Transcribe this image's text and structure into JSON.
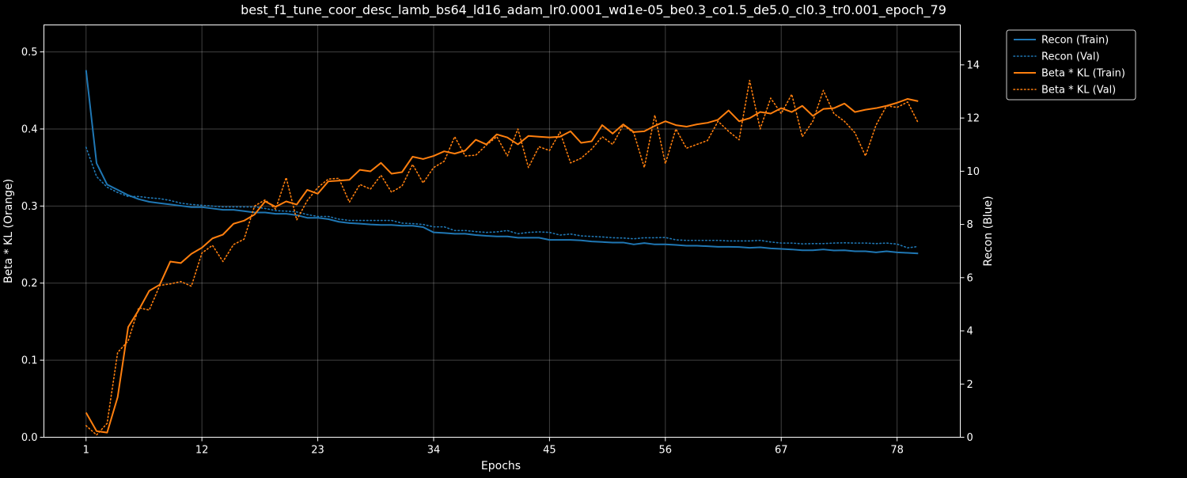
{
  "chart_data": {
    "type": "line",
    "title": "best_f1_tune_coor_desc_lamb_bs64_ld16_adam_lr0.0001_wd1e-05_be0.3_co1.5_de5.0_cl0.3_tr0.001_epoch_79",
    "xlabel": "Epochs",
    "ylabel_left": "Beta * KL (Orange)",
    "ylabel_right": "Recon (Blue)",
    "x_ticks": [
      1,
      12,
      23,
      34,
      45,
      56,
      67,
      78
    ],
    "xlim": [
      -3.0,
      84.0
    ],
    "y_left_ticks": [
      0.0,
      0.1,
      0.2,
      0.3,
      0.4,
      0.5
    ],
    "y_left_lim": [
      0.0,
      0.535
    ],
    "y_right_ticks": [
      0,
      2,
      4,
      6,
      8,
      10,
      12,
      14
    ],
    "y_right_lim": [
      0.0,
      15.5
    ],
    "grid": true,
    "legend_position": "outside-top-right",
    "x": [
      1,
      2,
      3,
      4,
      5,
      6,
      7,
      8,
      9,
      10,
      11,
      12,
      13,
      14,
      15,
      16,
      17,
      18,
      19,
      20,
      21,
      22,
      23,
      24,
      25,
      26,
      27,
      28,
      29,
      30,
      31,
      32,
      33,
      34,
      35,
      36,
      37,
      38,
      39,
      40,
      41,
      42,
      43,
      44,
      45,
      46,
      47,
      48,
      49,
      50,
      51,
      52,
      53,
      54,
      55,
      56,
      57,
      58,
      59,
      60,
      61,
      62,
      63,
      64,
      65,
      66,
      67,
      68,
      69,
      70,
      71,
      72,
      73,
      74,
      75,
      76,
      77,
      78,
      79,
      80
    ],
    "series": [
      {
        "name": "Recon (Train)",
        "axis": "right",
        "color": "#1f77b4",
        "style": "solid",
        "values": [
          13.8,
          10.3,
          9.5,
          9.3,
          9.1,
          8.95,
          8.85,
          8.8,
          8.75,
          8.7,
          8.65,
          8.65,
          8.6,
          8.55,
          8.55,
          8.5,
          8.45,
          8.45,
          8.4,
          8.4,
          8.35,
          8.25,
          8.25,
          8.2,
          8.1,
          8.05,
          8.03,
          8.0,
          7.98,
          7.98,
          7.95,
          7.95,
          7.9,
          7.7,
          7.68,
          7.65,
          7.65,
          7.6,
          7.57,
          7.55,
          7.55,
          7.5,
          7.5,
          7.5,
          7.42,
          7.42,
          7.42,
          7.4,
          7.36,
          7.34,
          7.32,
          7.32,
          7.25,
          7.3,
          7.25,
          7.25,
          7.23,
          7.2,
          7.2,
          7.18,
          7.16,
          7.16,
          7.15,
          7.12,
          7.14,
          7.1,
          7.08,
          7.06,
          7.03,
          7.03,
          7.06,
          7.02,
          7.03,
          6.99,
          6.99,
          6.95,
          6.99,
          6.95,
          6.93,
          6.91
        ]
      },
      {
        "name": "Recon (Val)",
        "axis": "right",
        "color": "#1f77b4",
        "style": "dotted",
        "values": [
          10.9,
          9.8,
          9.4,
          9.2,
          9.05,
          9.05,
          9.0,
          8.97,
          8.9,
          8.8,
          8.75,
          8.72,
          8.69,
          8.66,
          8.66,
          8.66,
          8.66,
          8.6,
          8.52,
          8.5,
          8.47,
          8.37,
          8.3,
          8.3,
          8.2,
          8.15,
          8.15,
          8.15,
          8.15,
          8.15,
          8.05,
          8.03,
          8.0,
          7.91,
          7.91,
          7.77,
          7.77,
          7.73,
          7.7,
          7.72,
          7.77,
          7.65,
          7.7,
          7.72,
          7.7,
          7.6,
          7.64,
          7.57,
          7.55,
          7.53,
          7.5,
          7.49,
          7.46,
          7.5,
          7.5,
          7.51,
          7.42,
          7.4,
          7.4,
          7.4,
          7.4,
          7.38,
          7.38,
          7.38,
          7.4,
          7.34,
          7.3,
          7.3,
          7.27,
          7.28,
          7.28,
          7.3,
          7.31,
          7.3,
          7.3,
          7.28,
          7.3,
          7.26,
          7.12,
          7.17
        ]
      },
      {
        "name": "Beta * KL (Train)",
        "axis": "left",
        "color": "#ff7f0e",
        "style": "solid",
        "values": [
          0.032,
          0.008,
          0.006,
          0.052,
          0.143,
          0.165,
          0.19,
          0.198,
          0.228,
          0.226,
          0.238,
          0.246,
          0.258,
          0.263,
          0.277,
          0.281,
          0.289,
          0.306,
          0.299,
          0.306,
          0.302,
          0.321,
          0.316,
          0.332,
          0.333,
          0.334,
          0.347,
          0.345,
          0.356,
          0.342,
          0.344,
          0.364,
          0.361,
          0.365,
          0.371,
          0.368,
          0.372,
          0.386,
          0.38,
          0.393,
          0.389,
          0.38,
          0.391,
          0.39,
          0.389,
          0.39,
          0.397,
          0.382,
          0.384,
          0.405,
          0.394,
          0.406,
          0.396,
          0.397,
          0.404,
          0.41,
          0.405,
          0.403,
          0.406,
          0.408,
          0.412,
          0.424,
          0.41,
          0.414,
          0.422,
          0.42,
          0.427,
          0.422,
          0.43,
          0.417,
          0.426,
          0.427,
          0.433,
          0.422,
          0.425,
          0.427,
          0.43,
          0.434,
          0.439,
          0.436
        ]
      },
      {
        "name": "Beta * KL (Val)",
        "axis": "left",
        "color": "#ff7f0e",
        "style": "dotted",
        "values": [
          0.015,
          0.003,
          0.018,
          0.11,
          0.125,
          0.168,
          0.165,
          0.197,
          0.199,
          0.202,
          0.196,
          0.239,
          0.249,
          0.228,
          0.25,
          0.257,
          0.3,
          0.308,
          0.296,
          0.337,
          0.282,
          0.307,
          0.324,
          0.335,
          0.336,
          0.305,
          0.328,
          0.322,
          0.34,
          0.318,
          0.326,
          0.354,
          0.33,
          0.35,
          0.358,
          0.39,
          0.365,
          0.366,
          0.379,
          0.39,
          0.365,
          0.4,
          0.35,
          0.377,
          0.372,
          0.396,
          0.356,
          0.362,
          0.374,
          0.39,
          0.38,
          0.405,
          0.395,
          0.35,
          0.418,
          0.355,
          0.4,
          0.375,
          0.38,
          0.385,
          0.41,
          0.397,
          0.386,
          0.463,
          0.4,
          0.44,
          0.42,
          0.445,
          0.39,
          0.41,
          0.45,
          0.42,
          0.41,
          0.395,
          0.365,
          0.405,
          0.43,
          0.428,
          0.435,
          0.408
        ]
      }
    ]
  }
}
